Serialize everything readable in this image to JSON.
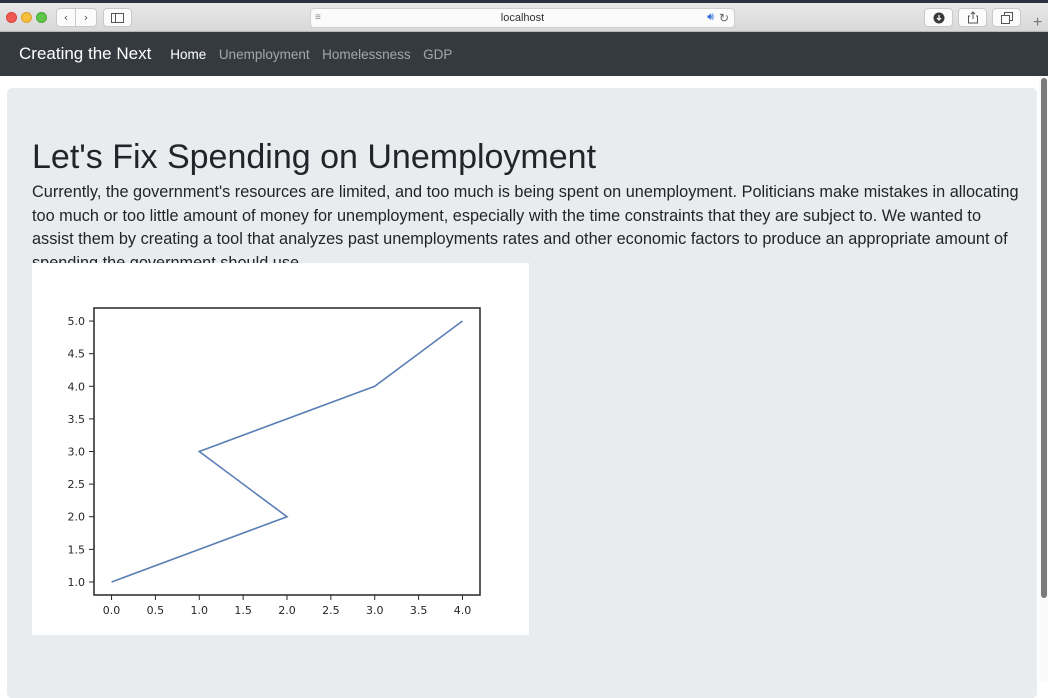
{
  "browser": {
    "url": "localhost",
    "icons": [
      "back-icon",
      "forward-icon",
      "sidebar-icon",
      "reader-icon",
      "sound-icon",
      "reload-icon",
      "download-icon",
      "share-icon",
      "tabs-icon",
      "new-tab-icon"
    ]
  },
  "navbar": {
    "brand": "Creating the Next",
    "links": [
      "Home",
      "Unemployment",
      "Homelessness",
      "GDP"
    ],
    "active": "Home"
  },
  "main": {
    "title": "Let's Fix Spending on Unemployment",
    "description": "Currently, the government's resources are limited, and too much is being spent on unemployment. Politicians make mistakes in allocating too much or too little amount of money for unemployment, especially with the time constraints that they are subject to. We wanted to assist them by creating a tool that analyzes past unemployments rates and other economic factors to produce an appropriate amount of spending the government should use."
  },
  "chart_data": {
    "type": "line",
    "x": [
      0,
      2,
      1,
      3,
      4
    ],
    "series": [
      {
        "values": [
          1,
          2,
          3,
          4,
          5
        ]
      }
    ],
    "xticks": [
      "0.0",
      "0.5",
      "1.0",
      "1.5",
      "2.0",
      "2.5",
      "3.0",
      "3.5",
      "4.0"
    ],
    "yticks": [
      "1.0",
      "1.5",
      "2.0",
      "2.5",
      "3.0",
      "3.5",
      "4.0",
      "4.5",
      "5.0"
    ],
    "xlim": [
      -0.2,
      4.2
    ],
    "ylim": [
      0.8,
      5.2
    ],
    "line_color": "#5a7fb5",
    "title": "",
    "xlabel": "",
    "ylabel": ""
  }
}
